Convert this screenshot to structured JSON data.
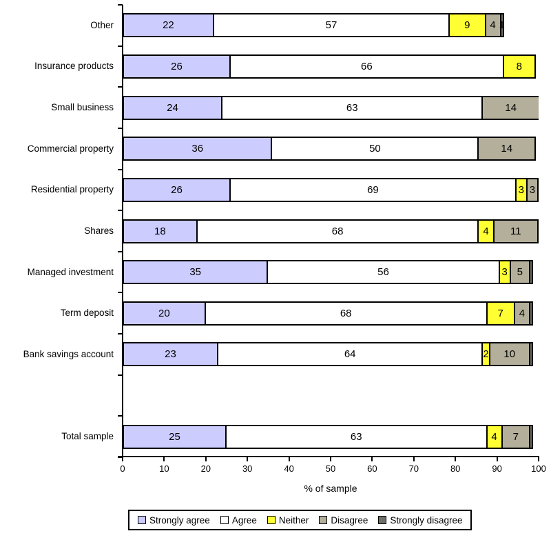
{
  "axis": {
    "xlabel": "% of sample",
    "x_min": 0,
    "x_max": 100,
    "x_ticks": [
      0,
      10,
      20,
      30,
      40,
      50,
      60,
      70,
      80,
      90,
      100
    ]
  },
  "colors": {
    "border": "#000000",
    "background": "#ffffff"
  },
  "chart_data": {
    "type": "bar",
    "orientation": "horizontal_stacked",
    "title": "",
    "xlabel": "% of sample",
    "ylabel": "",
    "xlim": [
      0,
      100
    ],
    "grid": false,
    "legend_position": "bottom",
    "categories": [
      "Other",
      "Insurance products",
      "Small business",
      "Commercial property",
      "Residential property",
      "Shares",
      "Managed investment",
      "Term deposit",
      "Bank savings account",
      "",
      "Total sample"
    ],
    "series": [
      {
        "name": "Strongly agree",
        "color": "#CCCCFF",
        "values": [
          22,
          26,
          24,
          36,
          26,
          18,
          35,
          20,
          23,
          0,
          25
        ],
        "value_labels": [
          "22",
          "26",
          "24",
          "36",
          "26",
          "18",
          "35",
          "20",
          "23",
          "",
          "25"
        ]
      },
      {
        "name": "Agree",
        "color": "#FFFFFF",
        "values": [
          57,
          66,
          63,
          50,
          69,
          68,
          56,
          68,
          64,
          0,
          63
        ],
        "value_labels": [
          "57",
          "66",
          "63",
          "50",
          "69",
          "68",
          "56",
          "68",
          "64",
          "",
          "63"
        ]
      },
      {
        "name": "Neither",
        "color": "#FFFF33",
        "values": [
          9,
          8,
          0,
          0,
          3,
          4,
          3,
          7,
          2,
          0,
          4
        ],
        "value_labels": [
          "9",
          "8",
          "",
          "",
          "3",
          "4",
          "3",
          "7",
          "2",
          "",
          "4"
        ]
      },
      {
        "name": "Disagree",
        "color": "#B3AF9B",
        "values": [
          4,
          0,
          14,
          14,
          3,
          11,
          5,
          4,
          10,
          0,
          7
        ],
        "value_labels": [
          "4",
          "",
          "14",
          "14",
          "3",
          "11",
          "5",
          "4",
          "10",
          "",
          "7"
        ]
      },
      {
        "name": "Strongly disagree",
        "color": "#6F6F68",
        "values": [
          1,
          0,
          0,
          0,
          0,
          0,
          1,
          1,
          1,
          0,
          1
        ],
        "value_labels": [
          "1",
          "",
          "",
          "",
          "",
          "",
          "",
          "",
          "",
          "",
          ""
        ]
      }
    ]
  }
}
